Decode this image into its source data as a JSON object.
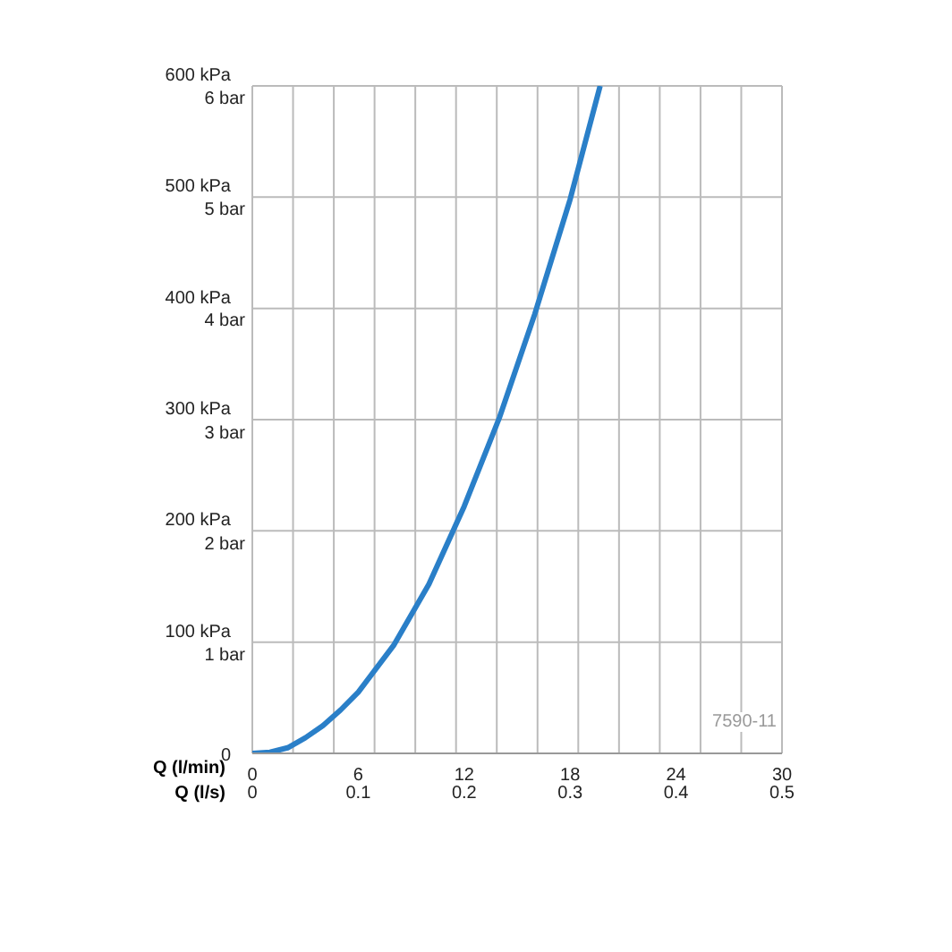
{
  "chart_data": {
    "type": "line",
    "xlabel": "Q (l/min)",
    "x2label": "Q (l/s)",
    "x": [
      0,
      1,
      2,
      3,
      4,
      5,
      6,
      8,
      10,
      12,
      14,
      16,
      18,
      19.7
    ],
    "series": [
      {
        "color": "#2a7fc8",
        "values": [
          0,
          1,
          5,
          14,
          25,
          39,
          55,
          97,
          152,
          222,
          302,
          395,
          498,
          600
        ]
      }
    ],
    "xlim": [
      0,
      30
    ],
    "xticks": [
      0,
      6,
      12,
      18,
      24,
      30
    ],
    "x2lim": [
      0,
      0.5
    ],
    "x2ticks": [
      0,
      0.1,
      0.2,
      0.3,
      0.4,
      0.5
    ],
    "ylim": [
      0,
      600
    ],
    "yticks": [
      0,
      {
        "value": 100,
        "label": "100 kPa"
      },
      {
        "value": 200,
        "label": "200 kPa"
      },
      {
        "value": 300,
        "label": "300 kPa"
      },
      {
        "value": 400,
        "label": "400 kPa"
      },
      {
        "value": 500,
        "label": "500 kPa"
      },
      {
        "value": 600,
        "label": "600 kPa"
      }
    ],
    "y2lim": [
      0,
      6
    ],
    "y2ticks": [
      {
        "value": 1,
        "label": "1 bar"
      },
      {
        "value": 2,
        "label": "2 bar"
      },
      {
        "value": 3,
        "label": "3 bar"
      },
      {
        "value": 4,
        "label": "4 bar"
      },
      {
        "value": 5,
        "label": "5 bar"
      },
      {
        "value": 6,
        "label": "6 bar"
      }
    ],
    "grid": true,
    "marker": "none",
    "line_style": "solid",
    "annotations": [
      "7590-11"
    ]
  }
}
